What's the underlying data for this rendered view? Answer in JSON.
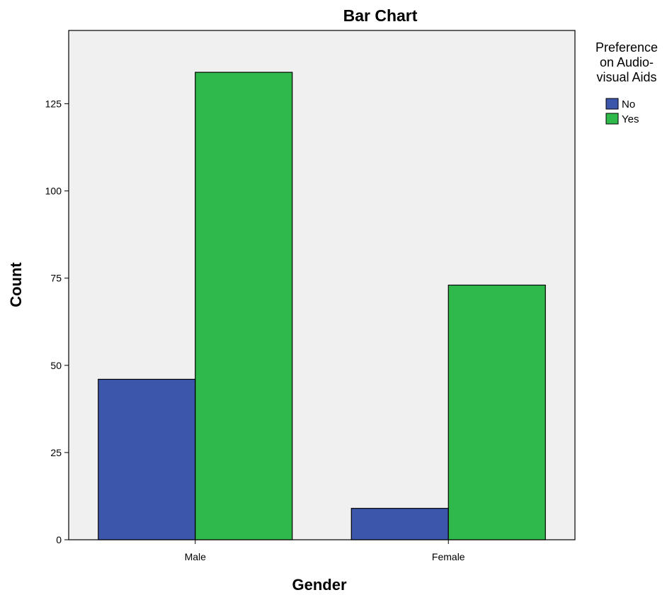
{
  "chart_data": {
    "type": "bar",
    "title": "Bar Chart",
    "xlabel": "Gender",
    "ylabel": "Count",
    "categories": [
      "Male",
      "Female"
    ],
    "series": [
      {
        "name": "No",
        "values": [
          46,
          9
        ],
        "color": "#3C56AC"
      },
      {
        "name": "Yes",
        "values": [
          134,
          73
        ],
        "color": "#2FB94A"
      }
    ],
    "ylim": [
      0,
      146
    ],
    "yticks": [
      0,
      25,
      50,
      75,
      100,
      125
    ],
    "grid": false,
    "plot_background": "#F0F0F0",
    "legend": {
      "title_lines": [
        "Preference",
        "on Audio-",
        "visual Aids"
      ],
      "placement": "top-right, outside plot"
    }
  }
}
